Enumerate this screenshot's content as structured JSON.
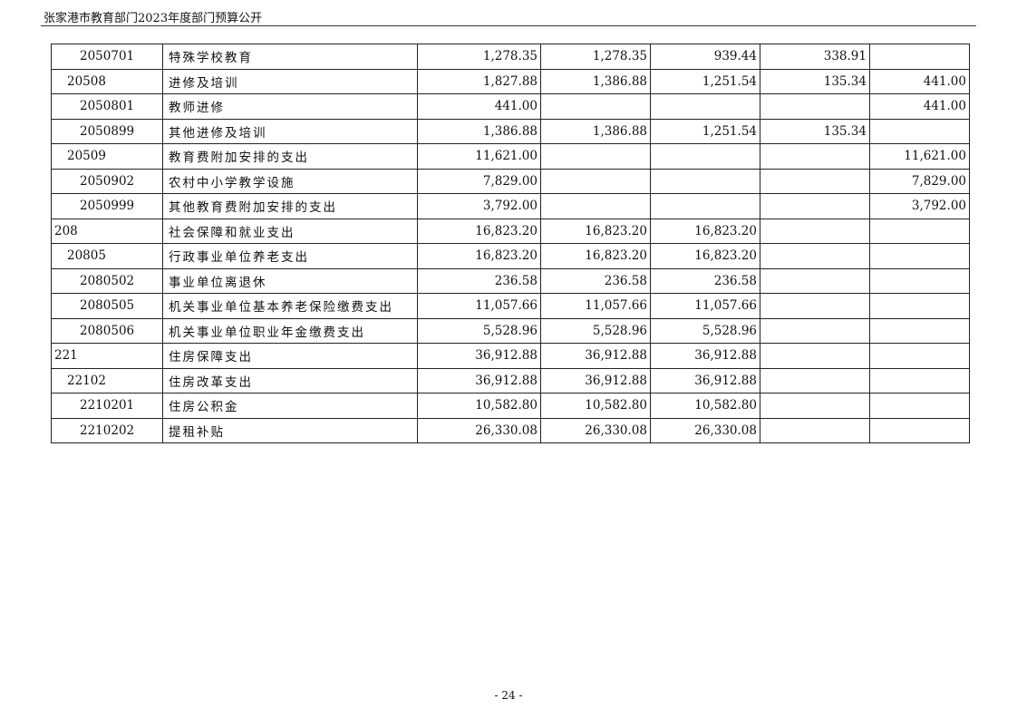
{
  "header": {
    "title": "张家港市教育部门2023年度部门预算公开"
  },
  "table": {
    "rows": [
      {
        "code": "2050701",
        "level": 3,
        "name": "特殊学校教育",
        "c1": "1,278.35",
        "c2": "1,278.35",
        "c3": "939.44",
        "c4": "338.91",
        "c5": ""
      },
      {
        "code": "20508",
        "level": 2,
        "name": "进修及培训",
        "c1": "1,827.88",
        "c2": "1,386.88",
        "c3": "1,251.54",
        "c4": "135.34",
        "c5": "441.00"
      },
      {
        "code": "2050801",
        "level": 3,
        "name": "教师进修",
        "c1": "441.00",
        "c2": "",
        "c3": "",
        "c4": "",
        "c5": "441.00"
      },
      {
        "code": "2050899",
        "level": 3,
        "name": "其他进修及培训",
        "c1": "1,386.88",
        "c2": "1,386.88",
        "c3": "1,251.54",
        "c4": "135.34",
        "c5": ""
      },
      {
        "code": "20509",
        "level": 2,
        "name": "教育费附加安排的支出",
        "c1": "11,621.00",
        "c2": "",
        "c3": "",
        "c4": "",
        "c5": "11,621.00"
      },
      {
        "code": "2050902",
        "level": 3,
        "name": "农村中小学教学设施",
        "c1": "7,829.00",
        "c2": "",
        "c3": "",
        "c4": "",
        "c5": "7,829.00"
      },
      {
        "code": "2050999",
        "level": 3,
        "name": "其他教育费附加安排的支出",
        "c1": "3,792.00",
        "c2": "",
        "c3": "",
        "c4": "",
        "c5": "3,792.00"
      },
      {
        "code": "208",
        "level": 1,
        "name": "社会保障和就业支出",
        "c1": "16,823.20",
        "c2": "16,823.20",
        "c3": "16,823.20",
        "c4": "",
        "c5": ""
      },
      {
        "code": "20805",
        "level": 2,
        "name": "行政事业单位养老支出",
        "c1": "16,823.20",
        "c2": "16,823.20",
        "c3": "16,823.20",
        "c4": "",
        "c5": ""
      },
      {
        "code": "2080502",
        "level": 3,
        "name": "事业单位离退休",
        "c1": "236.58",
        "c2": "236.58",
        "c3": "236.58",
        "c4": "",
        "c5": ""
      },
      {
        "code": "2080505",
        "level": 3,
        "name": "机关事业单位基本养老保险缴费支出",
        "c1": "11,057.66",
        "c2": "11,057.66",
        "c3": "11,057.66",
        "c4": "",
        "c5": ""
      },
      {
        "code": "2080506",
        "level": 3,
        "name": "机关事业单位职业年金缴费支出",
        "c1": "5,528.96",
        "c2": "5,528.96",
        "c3": "5,528.96",
        "c4": "",
        "c5": ""
      },
      {
        "code": "221",
        "level": 1,
        "name": "住房保障支出",
        "c1": "36,912.88",
        "c2": "36,912.88",
        "c3": "36,912.88",
        "c4": "",
        "c5": ""
      },
      {
        "code": "22102",
        "level": 2,
        "name": "住房改革支出",
        "c1": "36,912.88",
        "c2": "36,912.88",
        "c3": "36,912.88",
        "c4": "",
        "c5": ""
      },
      {
        "code": "2210201",
        "level": 3,
        "name": "住房公积金",
        "c1": "10,582.80",
        "c2": "10,582.80",
        "c3": "10,582.80",
        "c4": "",
        "c5": ""
      },
      {
        "code": "2210202",
        "level": 3,
        "name": "提租补贴",
        "c1": "26,330.08",
        "c2": "26,330.08",
        "c3": "26,330.08",
        "c4": "",
        "c5": ""
      }
    ]
  },
  "footer": {
    "page_number": "- 24 -"
  }
}
